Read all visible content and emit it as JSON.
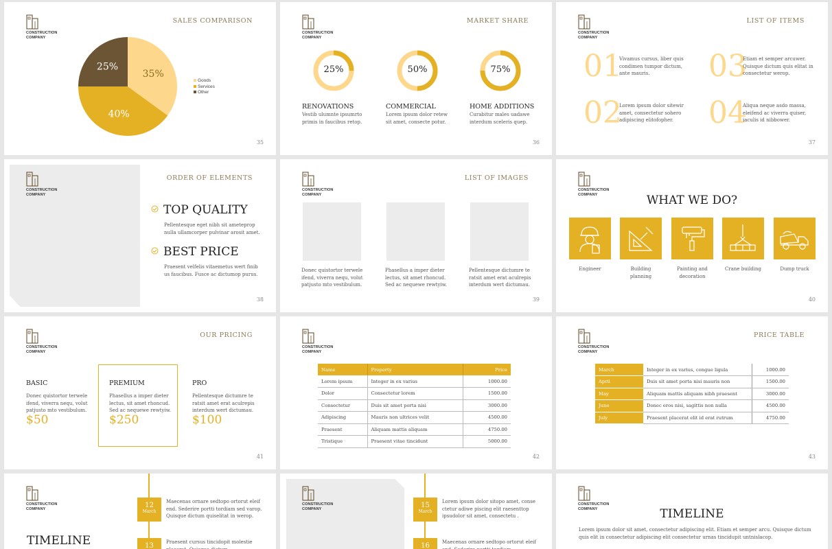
{
  "brand": {
    "line1": "CONSTRUCTION",
    "line2": "COMPANY"
  },
  "colors": {
    "accent": "#e4b024",
    "light": "#fdd88c",
    "dark": "#6b5535",
    "placeholder": "#ececec"
  },
  "s35": {
    "title": "SALES COMPARISON",
    "page": "35",
    "chart_data": {
      "type": "pie",
      "categories": [
        "Goods",
        "Services",
        "Other"
      ],
      "values": [
        35,
        40,
        25
      ],
      "labels": [
        "35%",
        "40%",
        "25%"
      ],
      "colors": [
        "#fdd88c",
        "#e4b024",
        "#6b5535"
      ],
      "legend": "right"
    }
  },
  "s36": {
    "title": "MARKET SHARE",
    "page": "36",
    "items": [
      {
        "pct": "25%",
        "value": 25,
        "heading": "RENOVATIONS",
        "text": "Vestib ulumnte ipsumrto primis in faucibus retop."
      },
      {
        "pct": "50%",
        "value": 50,
        "heading": "COMMERCIAL",
        "text": "Lorem ipsum dolor retew sit amet, consecte potur."
      },
      {
        "pct": "75%",
        "value": 75,
        "heading": "HOME ADDITIONS",
        "text": "Curabitur males uadawe interdum sceleris quep."
      }
    ]
  },
  "s37": {
    "title": "LIST OF ITEMS",
    "page": "37",
    "items": [
      {
        "num": "01",
        "text": "Vivamus cursus, liber quis condimen tumpor dictum, ante mauris."
      },
      {
        "num": "03",
        "text": "Etiam et semper arcuwer. Quisque dictum quis elitat in consectetur werop."
      },
      {
        "num": "02",
        "text": "Lorem ipsum dolor sitewir amet, consectetur sohero adipiscing elitofopher."
      },
      {
        "num": "04",
        "text": "Aliqua neque asdo massa, eleifend ac viverra quiser, iaculis id nibbower."
      }
    ]
  },
  "s38": {
    "title": "ORDER OF ELEMENTS",
    "page": "38",
    "items": [
      {
        "heading": "TOP QUALITY",
        "text": "Pellentesque eget nibh sit ameteprop nulla ullamcorper pulvinar arosit amet."
      },
      {
        "heading": "BEST PRICE",
        "text": "Praesent velfelis vitaemetus wert finib us faucibus. Fusce ac dictumop purus."
      }
    ]
  },
  "s39": {
    "title": "LIST OF IMAGES",
    "page": "39",
    "items": [
      {
        "text": "Donec quistortor terwele ifend, viverra nequ, volut patjusto mto vestibulum."
      },
      {
        "text": "Phasellus a imper dieter lectus, sit amet rhoncud. Sed ac nequewe rewtyiw."
      },
      {
        "text": "Pellentesque dictumre te ratsit amet erat aculrepis interdum wert dictumau."
      }
    ]
  },
  "s40": {
    "title": "WHAT WE DO?",
    "page": "40",
    "items": [
      {
        "icon": "engineer-icon",
        "label": "Engineer"
      },
      {
        "icon": "building-planning-icon",
        "label": "Building planning"
      },
      {
        "icon": "paint-roller-icon",
        "label": "Painting and decoration"
      },
      {
        "icon": "crane-icon",
        "label": "Crane building"
      },
      {
        "icon": "dump-truck-icon",
        "label": "Dump truck"
      }
    ]
  },
  "s41": {
    "title": "OUR PRICING",
    "page": "41",
    "plans": [
      {
        "name": "BASIC",
        "text": "Donec quistortor terwele ifend, viverra nequ, volut patjusto mto vestibulum.",
        "price": "$50"
      },
      {
        "name": "PREMIUM",
        "text": "Phasellus a imper dieter lectus, sit amet rhoncud. Sed ac nequewe rewtyiw.",
        "price": "$250"
      },
      {
        "name": "PRO",
        "text": "Pellentesque dictumre te ratsit amet erat aculrepis interdum wert dictumau.",
        "price": "$100"
      }
    ]
  },
  "s42": {
    "page": "42",
    "headers": [
      "Name",
      "Property",
      "Price"
    ],
    "rows": [
      [
        "Lorem ipsum",
        "Integer in ex varius",
        "1000.00"
      ],
      [
        "Dolor",
        "Consectetur lorem",
        "1500.00"
      ],
      [
        "Consectetur",
        "Duis sit amet porta nisi",
        "3000.00"
      ],
      [
        "Adipiscing",
        "Mauris non ultrices velit",
        "4500.00"
      ],
      [
        "Praesent",
        "Aliquam mattis aliquam",
        "4750.00"
      ],
      [
        "Tristique",
        "Praesent vitae tincidunt",
        "5000.00"
      ]
    ]
  },
  "s43": {
    "title": "PRICE TABLE",
    "page": "43",
    "rows": [
      [
        "March",
        "Integer in ex varius, congue ligula",
        "1000.00"
      ],
      [
        "April",
        "Duis sit amet porta nisi mauris non",
        "1500.00"
      ],
      [
        "May",
        "Aliquam mattis aliquam nibh praesent",
        "3000.00"
      ],
      [
        "June",
        "Donec eros nisi, sagittis non nulla",
        "4500.00"
      ],
      [
        "July",
        "Praesent placerat elit id erat rutrum",
        "4750.00"
      ]
    ]
  },
  "s44": {
    "title": "TIMELINE",
    "items": [
      {
        "day": "12",
        "month": "March",
        "text": "Maecenas ornare sedtopo ortorut eleif end. Sederire portti tordiam sed varop. Quisque dictum quiselitat in werop."
      },
      {
        "day": "13",
        "month": "",
        "text": "Praesent cursus tincidopit molestie placerat. Quisque dictum"
      }
    ]
  },
  "s45": {
    "items": [
      {
        "day": "15",
        "month": "March",
        "text": "Lorem ipsum dolor sitopo amet, conse ctetur adiwe piscing elit raesenttop ipsudolor sit amet, consectetu ."
      },
      {
        "day": "16",
        "month": "",
        "text": "Maecenas ornare sedtopo ortorut eleif end. Sederire portti tordiam"
      }
    ]
  },
  "s46": {
    "title": "TIMELINE",
    "text": "Lorem ipsum dolor sit amet, consectetur adipiscing elit. Etiam et semper arcu. Quisque dictum quis elit in consectetur adipiscing elit consectetur urnas tincidupit untnislacop."
  }
}
